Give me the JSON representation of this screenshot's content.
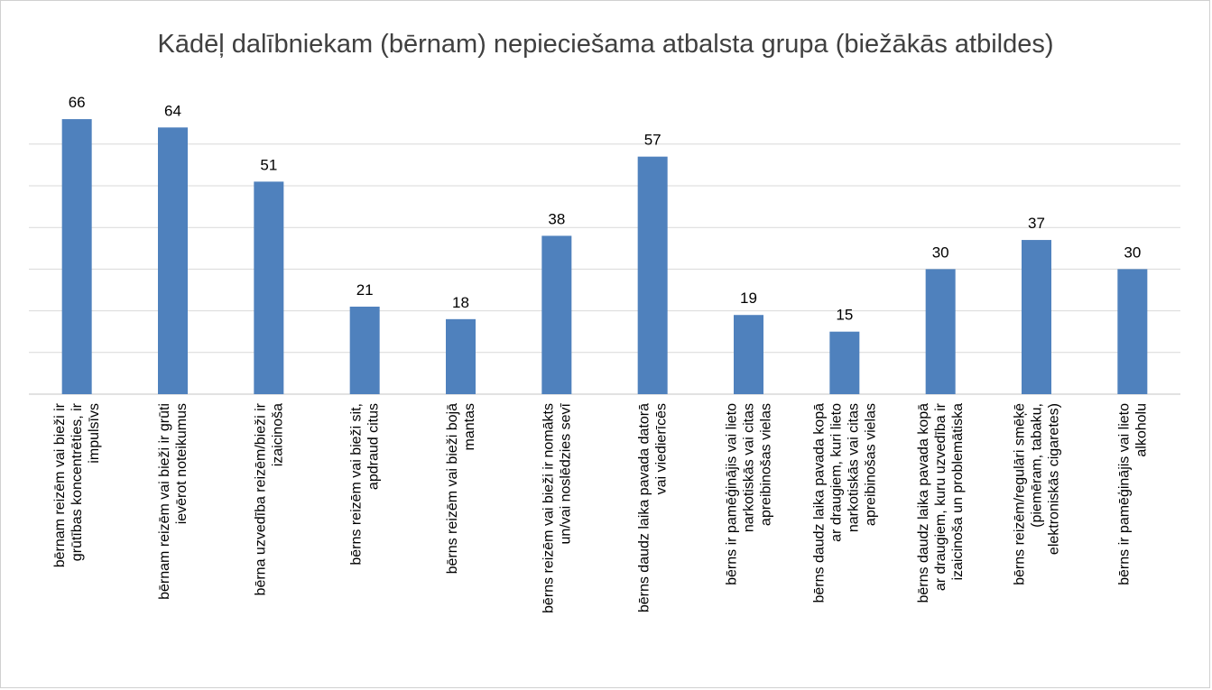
{
  "chart_data": {
    "type": "bar",
    "title": "Kādēļ dalībniekam (bērnam) nepieciešama atbalsta grupa (biežākās atbildes)",
    "categories": [
      [
        "bērnam reizēm vai bieži ir",
        "grūtības koncentrēties, ir",
        "impulsīvs"
      ],
      [
        "bērnam reizēm vai bieži ir grūti",
        "ievērot noteikumus"
      ],
      [
        "bērna uzvedība reizēm/bieži ir",
        "izaicinoša"
      ],
      [
        "bērns reizēm vai bieži sit,",
        "apdraud citus"
      ],
      [
        "bērns reizēm vai bieži bojā",
        "mantas"
      ],
      [
        "bērns reizēm vai bieži ir nomākts",
        "un/vai noslēdzies sevī"
      ],
      [
        "bērns daudz laika pavada datorā",
        "vai viedierīcēs"
      ],
      [
        "bērns ir pamēģinājis vai lieto",
        "narkotiskās vai citas",
        "apreibinošas vielas"
      ],
      [
        "bērns daudz laika pavada kopā",
        "ar draugiem, kuri lieto",
        "narkotiskās vai citas",
        "apreibinošas vielas"
      ],
      [
        "bērns daudz laika pavada kopā",
        "ar draugiem, kuru uzvedība ir",
        "izaicinoša un problemātiska"
      ],
      [
        "bērns reizēm/regulāri smēķē",
        "(piemēram, tabaku,",
        "elektroniskās cigaretes)"
      ],
      [
        "bērns ir pamēģinājis vai lieto",
        "alkoholu"
      ]
    ],
    "values": [
      66,
      64,
      51,
      21,
      18,
      38,
      57,
      19,
      15,
      30,
      37,
      30
    ],
    "ylim": [
      0,
      70
    ],
    "gridline_step": 10,
    "grid": true,
    "y_axis_labels_shown": false,
    "data_labels": true,
    "legend": "none",
    "colors": {
      "bar": "#4f81bd",
      "grid": "#d9d9d9",
      "axis": "#d9d9d9",
      "title": "#404040"
    }
  }
}
